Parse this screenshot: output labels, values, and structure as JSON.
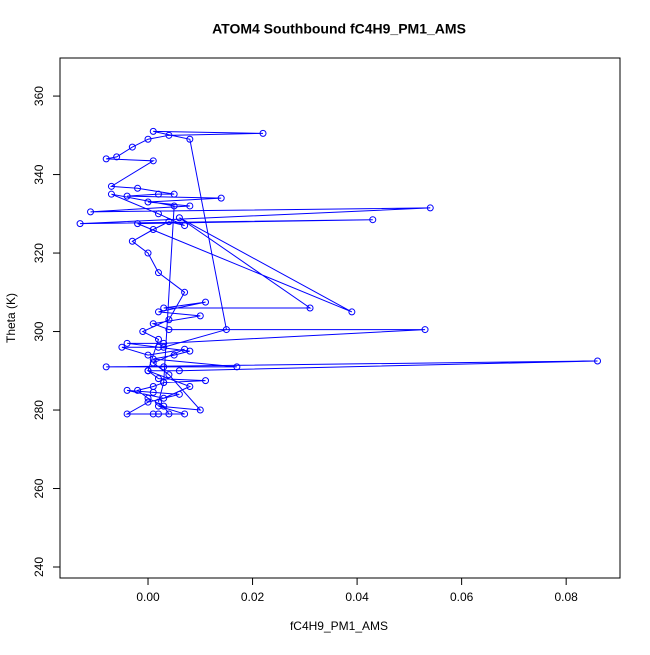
{
  "chart_data": {
    "type": "line",
    "title": "ATOM4 Southbound fC4H9_PM1_AMS",
    "x_label": "fC4H9_PM1_AMS",
    "y_label": "Theta (K)",
    "marker": "circle",
    "x": [
      0.001,
      0.002,
      0.004,
      0.003,
      0.0,
      -0.002,
      0.001,
      0.003,
      0.011,
      0.002,
      0.0,
      0.006,
      0.086,
      -0.008,
      0.003,
      0.017,
      0.001,
      0.005,
      0.008,
      0.002,
      -0.004,
      0.003,
      0.053,
      0.004,
      0.001,
      0.01,
      0.002,
      0.011,
      0.003,
      0.031,
      0.006,
      0.039,
      -0.002,
      0.043,
      -0.013,
      0.054,
      -0.011,
      0.008,
      0.0,
      0.014,
      -0.004,
      0.002,
      0.005,
      -0.002,
      -0.007,
      0.001,
      -0.008,
      -0.006,
      -0.003,
      0.0,
      0.004,
      0.022,
      0.001,
      0.008,
      0.015,
      0.003,
      -0.005,
      0.0,
      0.007,
      0.001,
      0.004,
      0.01,
      0.002,
      0.007,
      -0.004,
      0.0,
      0.006,
      0.001,
      -0.004,
      0.003,
      0.008,
      0.0,
      0.002,
      -0.001,
      0.004,
      0.007,
      0.002,
      0.0,
      -0.003,
      0.001,
      0.004,
      0.007,
      0.002,
      -0.007,
      0.005,
      0.003,
      0.002
    ],
    "series": [
      {
        "name": "Theta",
        "color": "#0000ff",
        "values": [
          279,
          279,
          279,
          281,
          283,
          285,
          286,
          287,
          287.5,
          288,
          290,
          290,
          292.5,
          291,
          291,
          291,
          293,
          294,
          295,
          296,
          297,
          297,
          300.5,
          300.5,
          302,
          304,
          305,
          307.5,
          306,
          306,
          329,
          305,
          327.5,
          328.5,
          327.5,
          331.5,
          330.5,
          332,
          333,
          334,
          334.5,
          335,
          335,
          336.5,
          337,
          343.5,
          344,
          344.5,
          347,
          349,
          350,
          350.5,
          351,
          349,
          300.5,
          296,
          296,
          294,
          295.5,
          292,
          289,
          280,
          281,
          279,
          279,
          282,
          284,
          284.5,
          285,
          283,
          286,
          290,
          298,
          300,
          303,
          310,
          315,
          320,
          323,
          326,
          328,
          327,
          330,
          335,
          332,
          287,
          282
        ]
      }
    ],
    "xlim": [
      -0.01684,
      0.0903
    ],
    "ylim": [
      237.2,
      369.7
    ],
    "xticks": [
      {
        "value": 0,
        "label": "0.00"
      },
      {
        "value": 0.02,
        "label": "0.02"
      },
      {
        "value": 0.04,
        "label": "0.04"
      },
      {
        "value": 0.06,
        "label": "0.06"
      },
      {
        "value": 0.08,
        "label": "0.08"
      }
    ],
    "yticks": [
      240,
      260,
      280,
      300,
      320,
      340,
      360
    ]
  }
}
